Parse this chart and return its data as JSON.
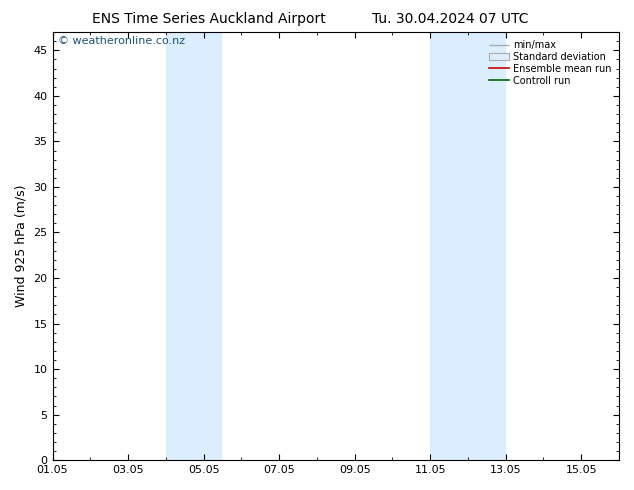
{
  "title_left": "ENS Time Series Auckland Airport",
  "title_right": "Tu. 30.04.2024 07 UTC",
  "ylabel": "Wind 925 hPa (m/s)",
  "watermark": "© weatheronline.co.nz",
  "ylim": [
    0,
    47
  ],
  "yticks": [
    0,
    5,
    10,
    15,
    20,
    25,
    30,
    35,
    40,
    45
  ],
  "xlim": [
    1,
    16
  ],
  "xtick_labels": [
    "01.05",
    "03.05",
    "05.05",
    "07.05",
    "09.05",
    "11.05",
    "13.05",
    "15.05"
  ],
  "xtick_positions": [
    1,
    3,
    5,
    7,
    9,
    11,
    13,
    15
  ],
  "blue_bands": [
    {
      "start": 4.0,
      "end": 5.5
    },
    {
      "start": 11.0,
      "end": 13.0
    }
  ],
  "band_color": "#daeeff",
  "background_color": "#ffffff",
  "legend_entries": [
    "min/max",
    "Standard deviation",
    "Ensemble mean run",
    "Controll run"
  ],
  "legend_line_colors": [
    "#aaaaaa",
    "#cccccc",
    "#cc0000",
    "#006600"
  ],
  "title_fontsize": 10,
  "tick_fontsize": 8,
  "ylabel_fontsize": 9,
  "watermark_fontsize": 8,
  "watermark_color": "#1a5276"
}
